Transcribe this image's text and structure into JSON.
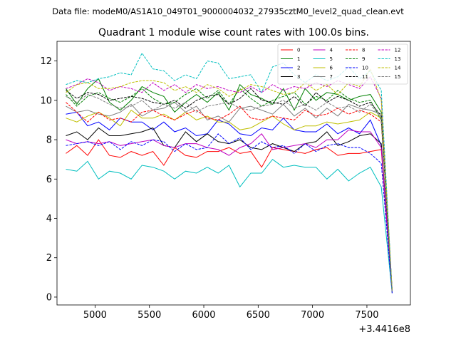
{
  "figure": {
    "suptitle": "Data file: modeM0/AS1A10_049T01_9000004032_27935cztM0_level2_quad_clean.evt"
  },
  "chart_data": {
    "type": "line",
    "title": "Quadrant 1 module wise count rates with 100.0s bins.",
    "xlabel": "",
    "ylabel": "",
    "x_offset_label": "+3.4416e8",
    "xlim": [
      4650,
      7900
    ],
    "ylim": [
      -0.4,
      13.0
    ],
    "x_ticks": [
      5000,
      5500,
      6000,
      6500,
      7000,
      7500
    ],
    "x_tick_labels": [
      "5000",
      "5500",
      "6000",
      "6500",
      "7000",
      "7500"
    ],
    "y_ticks": [
      0,
      2,
      4,
      6,
      8,
      10,
      12
    ],
    "y_tick_labels": [
      "0",
      "2",
      "4",
      "6",
      "8",
      "10",
      "12"
    ],
    "grid": false,
    "legend_position": "upper right",
    "x": [
      4732,
      4832,
      4932,
      5032,
      5132,
      5232,
      5332,
      5432,
      5532,
      5632,
      5732,
      5832,
      5932,
      6032,
      6132,
      6232,
      6332,
      6432,
      6532,
      6632,
      6732,
      6832,
      6932,
      7032,
      7132,
      7232,
      7332,
      7432,
      7532,
      7632,
      7732
    ],
    "series": [
      {
        "name": "0",
        "color": "#ff0000",
        "dash": "solid",
        "values": [
          7.3,
          7.7,
          7.2,
          8.0,
          7.2,
          7.1,
          7.4,
          7.2,
          7.4,
          6.7,
          7.6,
          7.2,
          7.1,
          7.4,
          7.4,
          7.6,
          7.3,
          7.4,
          6.6,
          7.6,
          7.5,
          7.4,
          7.3,
          7.5,
          7.6,
          7.2,
          7.3,
          7.3,
          7.4,
          7.5,
          0.2
        ]
      },
      {
        "name": "1",
        "color": "#008000",
        "dash": "solid",
        "values": [
          10.6,
          9.8,
          10.6,
          11.1,
          9.9,
          9.5,
          10.0,
          10.7,
          10.4,
          10.2,
          9.4,
          9.9,
          10.3,
          9.9,
          10.4,
          9.5,
          10.8,
          10.3,
          10.1,
          9.8,
          10.6,
          9.5,
          10.6,
          10.0,
          10.4,
          10.3,
          10.0,
          10.2,
          10.3,
          9.4,
          0.3
        ]
      },
      {
        "name": "2",
        "color": "#0000ff",
        "dash": "solid",
        "values": [
          9.3,
          9.4,
          8.7,
          8.9,
          8.5,
          9.1,
          8.9,
          8.9,
          8.5,
          8.9,
          8.4,
          8.6,
          8.2,
          8.3,
          9.0,
          8.8,
          8.3,
          8.2,
          8.6,
          8.5,
          9.1,
          8.5,
          8.4,
          8.4,
          8.8,
          8.3,
          8.6,
          8.3,
          9.0,
          7.7,
          0.3
        ]
      },
      {
        "name": "3",
        "color": "#000000",
        "dash": "solid",
        "values": [
          8.2,
          8.4,
          8.0,
          8.6,
          8.2,
          8.2,
          8.3,
          8.4,
          8.6,
          7.7,
          7.6,
          8.4,
          7.9,
          8.3,
          7.9,
          7.8,
          8.0,
          7.6,
          7.5,
          7.8,
          7.6,
          7.4,
          7.8,
          7.9,
          8.4,
          7.7,
          7.9,
          8.2,
          8.3,
          7.8,
          0.3
        ]
      },
      {
        "name": "4",
        "color": "#c000c0",
        "dash": "solid",
        "values": [
          8.0,
          7.8,
          7.9,
          7.8,
          7.9,
          7.7,
          7.8,
          7.9,
          8.0,
          7.7,
          7.6,
          7.8,
          7.8,
          7.6,
          7.5,
          7.2,
          7.6,
          7.8,
          8.3,
          7.5,
          7.6,
          7.7,
          7.8,
          7.6,
          8.0,
          8.0,
          8.5,
          8.4,
          8.4,
          7.6,
          0.3
        ]
      },
      {
        "name": "5",
        "color": "#00bfbf",
        "dash": "solid",
        "values": [
          6.5,
          6.4,
          6.9,
          6.0,
          6.4,
          6.3,
          6.0,
          6.7,
          6.6,
          6.4,
          6.0,
          6.4,
          6.3,
          6.6,
          6.3,
          6.7,
          5.6,
          6.3,
          6.3,
          7.0,
          6.6,
          6.7,
          6.6,
          6.6,
          6.0,
          6.5,
          5.9,
          6.3,
          6.6,
          5.6,
          0.2
        ]
      },
      {
        "name": "6",
        "color": "#bfbf00",
        "dash": "solid",
        "values": [
          9.1,
          8.9,
          9.2,
          9.4,
          9.1,
          8.7,
          9.5,
          9.1,
          9.1,
          9.3,
          9.0,
          9.4,
          9.0,
          9.2,
          8.9,
          8.9,
          8.5,
          8.6,
          8.9,
          9.2,
          8.8,
          8.5,
          8.7,
          8.7,
          8.9,
          8.8,
          8.9,
          9.0,
          9.4,
          9.1,
          0.4
        ]
      },
      {
        "name": "7",
        "color": "#808080",
        "dash": "solid",
        "values": [
          9.7,
          9.4,
          9.5,
          9.3,
          9.2,
          9.4,
          9.8,
          9.2,
          9.5,
          9.6,
          9.9,
          9.4,
          9.7,
          9.0,
          9.2,
          8.9,
          9.6,
          9.7,
          9.5,
          9.3,
          9.8,
          9.2,
          9.6,
          9.1,
          9.6,
          9.2,
          9.8,
          9.6,
          9.5,
          9.3,
          0.3
        ]
      },
      {
        "name": "8",
        "color": "#ff0000",
        "dash": "dashed",
        "values": [
          9.9,
          9.4,
          8.9,
          9.4,
          9.0,
          9.1,
          8.9,
          9.4,
          9.5,
          9.2,
          9.0,
          9.3,
          9.5,
          9.1,
          9.0,
          9.3,
          9.7,
          9.1,
          9.0,
          9.2,
          9.1,
          9.0,
          9.5,
          9.2,
          9.3,
          9.6,
          9.3,
          9.5,
          9.3,
          8.9,
          0.3
        ]
      },
      {
        "name": "9",
        "color": "#008000",
        "dash": "dashed",
        "values": [
          10.3,
          9.7,
          10.2,
          10.4,
          10.1,
          9.9,
          10.2,
          10.6,
          10.1,
          9.8,
          9.9,
          10.3,
          10.6,
          10.1,
          10.5,
          9.8,
          10.6,
          10.1,
          9.7,
          10.0,
          10.2,
          10.4,
          9.8,
          10.2,
          10.0,
          10.5,
          10.1,
          9.9,
          10.0,
          9.0,
          0.3
        ]
      },
      {
        "name": "10",
        "color": "#0000ff",
        "dash": "dashed",
        "values": [
          7.7,
          7.8,
          7.9,
          7.7,
          7.9,
          7.5,
          7.9,
          7.7,
          8.0,
          7.9,
          7.4,
          7.8,
          7.5,
          7.6,
          8.3,
          7.8,
          8.1,
          7.5,
          7.9,
          7.6,
          7.7,
          7.3,
          7.8,
          7.4,
          7.7,
          7.8,
          7.6,
          7.6,
          7.3,
          6.8,
          0.2
        ]
      },
      {
        "name": "11",
        "color": "#000000",
        "dash": "dashed",
        "values": [
          10.5,
          10.1,
          10.4,
          10.3,
          10.0,
          10.1,
          10.2,
          10.1,
          9.9,
          9.8,
          10.0,
          9.6,
          10.0,
          10.2,
          10.3,
          9.8,
          10.1,
          10.6,
          10.0,
          9.9,
          9.8,
          10.2,
          9.7,
          10.4,
          9.9,
          10.2,
          10.0,
          9.7,
          9.9,
          9.2,
          0.3
        ]
      },
      {
        "name": "12",
        "color": "#c000c0",
        "dash": "dashed",
        "values": [
          10.6,
          10.8,
          11.1,
          10.9,
          10.5,
          10.7,
          10.6,
          10.4,
          10.9,
          10.5,
          10.8,
          10.4,
          10.8,
          10.6,
          10.7,
          10.5,
          10.4,
          10.7,
          10.4,
          10.8,
          10.5,
          10.7,
          10.6,
          10.9,
          10.7,
          11.0,
          10.8,
          10.6,
          11.2,
          10.1,
          0.3
        ]
      },
      {
        "name": "13",
        "color": "#00bfbf",
        "dash": "dashed",
        "values": [
          10.8,
          11.0,
          10.9,
          11.1,
          11.2,
          11.4,
          11.3,
          12.4,
          11.6,
          11.5,
          11.0,
          11.3,
          11.1,
          12.0,
          11.9,
          11.1,
          11.2,
          11.3,
          10.4,
          11.7,
          11.9,
          11.3,
          10.9,
          11.3,
          11.0,
          11.2,
          11.7,
          11.1,
          11.5,
          10.5,
          0.3
        ]
      },
      {
        "name": "14",
        "color": "#bfbf00",
        "dash": "dashed",
        "values": [
          10.4,
          10.8,
          10.9,
          10.6,
          10.6,
          10.7,
          10.9,
          11.0,
          11.0,
          10.9,
          10.5,
          10.7,
          10.4,
          10.8,
          10.6,
          10.2,
          10.5,
          10.8,
          10.7,
          10.5,
          10.3,
          10.4,
          10.9,
          10.5,
          10.8,
          10.3,
          10.9,
          10.7,
          11.6,
          10.0,
          0.3
        ]
      },
      {
        "name": "15",
        "color": "#808080",
        "dash": "dashed",
        "values": [
          10.2,
          9.9,
          10.3,
          10.1,
          9.8,
          9.6,
          9.7,
          10.0,
          9.5,
          9.8,
          9.6,
          9.9,
          9.4,
          9.7,
          9.8,
          9.9,
          9.6,
          9.5,
          9.7,
          9.8,
          10.0,
          9.6,
          9.8,
          9.5,
          9.9,
          9.6,
          9.7,
          9.4,
          9.8,
          9.1,
          0.3
        ]
      }
    ]
  }
}
